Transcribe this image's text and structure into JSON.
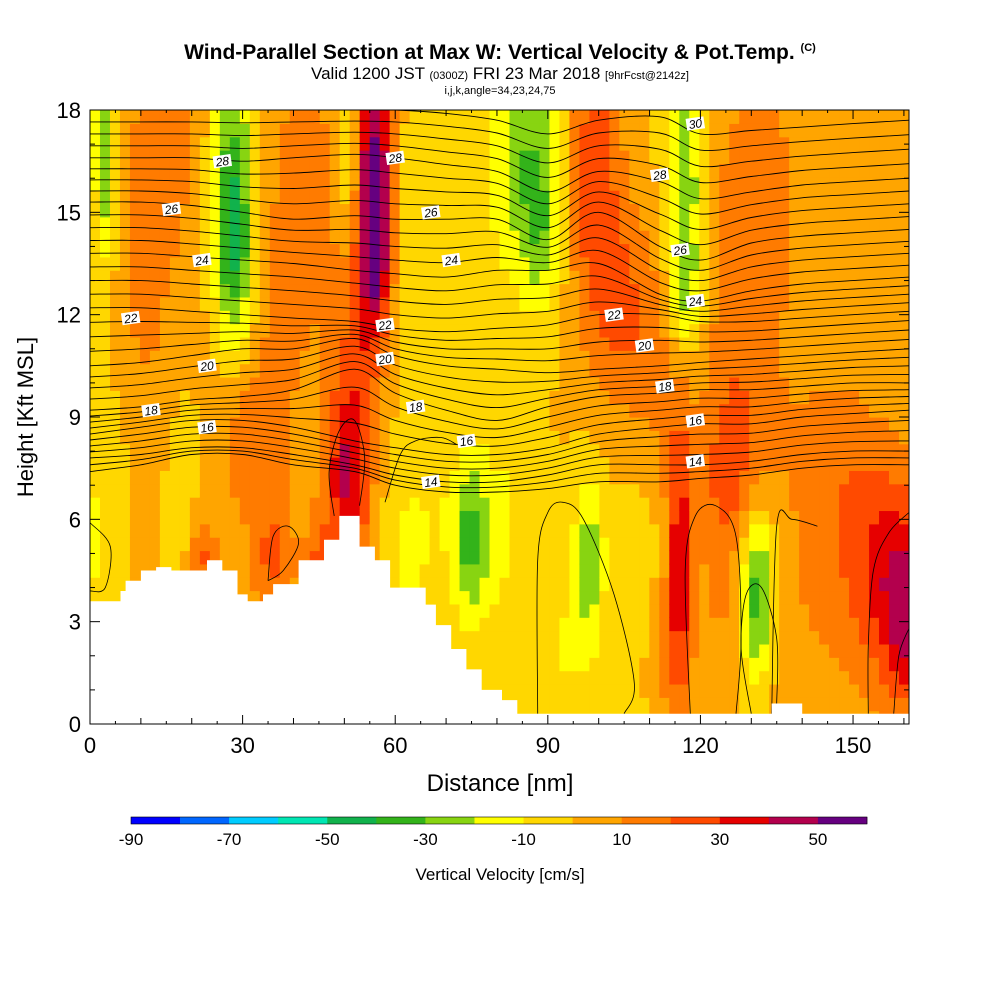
{
  "title": {
    "main": "Wind-Parallel Section at Max W: Vertical Velocity & Pot.Temp.",
    "copyright": "(C)",
    "valid_prefix": "Valid 1200 JST",
    "valid_utc": "(0300Z)",
    "valid_date": "FRI 23 Mar 2018",
    "forecast": "[9hrFcst@2142z]",
    "indices": "i,j,k,angle=34,23,24,75"
  },
  "colors": {
    "terrain": "#ffffff",
    "frame": "#000000",
    "contour": "#000000",
    "palette": [
      "#0000ff",
      "#0066ff",
      "#00ccff",
      "#00e6b3",
      "#11b24c",
      "#33b31a",
      "#88d411",
      "#ffff00",
      "#ffd700",
      "#ffa500",
      "#ff7b00",
      "#ff4a00",
      "#e60000",
      "#b3004d",
      "#660080"
    ]
  },
  "chart_data": {
    "type": "heatmap",
    "xlabel": "Distance [nm]",
    "ylabel": "Height [Kft MSL]",
    "xlim": [
      0,
      161
    ],
    "ylim": [
      0,
      18
    ],
    "x_ticks": [
      0,
      30,
      60,
      90,
      120,
      150
    ],
    "y_ticks": [
      0,
      3,
      6,
      9,
      12,
      15,
      18
    ],
    "colorbar": {
      "label": "Vertical Velocity [cm/s]",
      "tick_labels": [
        "-90",
        "-70",
        "-50",
        "-30",
        "-10",
        "10",
        "30",
        "50"
      ],
      "tick_values": [
        -90,
        -70,
        -50,
        -30,
        -10,
        10,
        30,
        50
      ],
      "min": -90,
      "max": 60,
      "step": 10
    },
    "terrain": {
      "x": [
        0,
        6,
        6,
        7,
        7,
        10,
        10,
        13,
        13,
        16,
        16,
        23,
        23,
        26,
        26,
        29,
        29,
        31,
        31,
        34,
        34,
        36,
        36,
        41,
        41,
        46,
        46,
        49,
        49,
        53,
        53,
        56,
        56,
        59,
        59,
        66,
        66,
        68,
        68,
        71,
        71,
        74,
        74,
        77,
        77,
        81,
        81,
        84,
        84,
        87,
        87,
        94,
        94,
        134,
        134,
        140,
        140,
        161
      ],
      "y": [
        3.6,
        3.6,
        3.9,
        3.9,
        4.2,
        4.2,
        4.5,
        4.5,
        4.6,
        4.6,
        4.5,
        4.5,
        4.8,
        4.8,
        4.5,
        4.5,
        3.8,
        3.8,
        3.6,
        3.6,
        3.8,
        3.8,
        4.1,
        4.1,
        4.8,
        4.8,
        5.4,
        5.4,
        6.1,
        6.1,
        5.2,
        5.2,
        4.8,
        4.8,
        4.0,
        4.0,
        3.5,
        3.5,
        2.9,
        2.9,
        2.2,
        2.2,
        1.6,
        1.6,
        1.0,
        1.0,
        0.7,
        0.7,
        0.3,
        0.3,
        0.3,
        0.3,
        0.3,
        0.3,
        0.6,
        0.6,
        0.3,
        0.3
      ]
    },
    "velocity_field": {
      "background": 0,
      "features": [
        {
          "x": 3,
          "y": 16.5,
          "sx": 1.6,
          "sy": 2.5,
          "value": -30
        },
        {
          "x": 28,
          "y": 16.0,
          "sx": 3,
          "sy": 3,
          "value": -32
        },
        {
          "x": 28.5,
          "y": 13.5,
          "sx": 2.5,
          "sy": 2,
          "value": -25
        },
        {
          "x": 15,
          "y": 17,
          "sx": 6,
          "sy": 2.5,
          "value": 12
        },
        {
          "x": 42,
          "y": 16,
          "sx": 6,
          "sy": 3,
          "value": 14
        },
        {
          "x": 51,
          "y": 17,
          "sx": 1.5,
          "sy": 2,
          "value": -22
        },
        {
          "x": 56,
          "y": 16.5,
          "sx": 2.6,
          "sy": 2.4,
          "value": 45
        },
        {
          "x": 56,
          "y": 13.5,
          "sx": 2.3,
          "sy": 2,
          "value": 35
        },
        {
          "x": 63,
          "y": 14,
          "sx": 2.5,
          "sy": 3,
          "value": -8
        },
        {
          "x": 86,
          "y": 16.5,
          "sx": 5,
          "sy": 2.5,
          "value": -30
        },
        {
          "x": 89,
          "y": 14.2,
          "sx": 2.5,
          "sy": 1.4,
          "value": -15
        },
        {
          "x": 99,
          "y": 16,
          "sx": 4,
          "sy": 3,
          "value": 28
        },
        {
          "x": 104,
          "y": 12,
          "sx": 4,
          "sy": 2,
          "value": 16
        },
        {
          "x": 117,
          "y": 15.5,
          "sx": 3,
          "sy": 3,
          "value": -32
        },
        {
          "x": 117,
          "y": 12.5,
          "sx": 2.5,
          "sy": 1.2,
          "value": -15
        },
        {
          "x": 112,
          "y": 11,
          "sx": 5,
          "sy": 3,
          "value": 14
        },
        {
          "x": 130,
          "y": 16,
          "sx": 8,
          "sy": 3,
          "value": 12
        },
        {
          "x": 128,
          "y": 10,
          "sx": 6,
          "sy": 3,
          "value": 14
        },
        {
          "x": 150,
          "y": 15,
          "sx": 12,
          "sy": 4,
          "value": 4
        },
        {
          "x": 10,
          "y": 11,
          "sx": 6,
          "sy": 4,
          "value": 12
        },
        {
          "x": 35,
          "y": 10,
          "sx": 8,
          "sy": 3,
          "value": 10
        },
        {
          "x": 52,
          "y": 9,
          "sx": 3,
          "sy": 3.5,
          "value": 20
        },
        {
          "x": 50,
          "y": 7,
          "sx": 3,
          "sy": 2,
          "value": 26
        },
        {
          "x": 18,
          "y": 7,
          "sx": 3,
          "sy": 2.5,
          "value": -10
        },
        {
          "x": 4,
          "y": 8,
          "sx": 5,
          "sy": 2.5,
          "value": -10
        },
        {
          "x": 31,
          "y": 8,
          "sx": 4,
          "sy": 1.5,
          "value": 12
        },
        {
          "x": 75,
          "y": 5.4,
          "sx": 2.6,
          "sy": 1.8,
          "value": -32
        },
        {
          "x": 82,
          "y": 6,
          "sx": 3,
          "sy": 3,
          "value": -10
        },
        {
          "x": 98,
          "y": 4.7,
          "sx": 2.2,
          "sy": 1.7,
          "value": -28
        },
        {
          "x": 92,
          "y": 2,
          "sx": 4,
          "sy": 2,
          "value": -10
        },
        {
          "x": 108,
          "y": 4,
          "sx": 3,
          "sy": 3,
          "value": -8
        },
        {
          "x": 116,
          "y": 4.5,
          "sx": 1.8,
          "sy": 3,
          "value": 36
        },
        {
          "x": 112,
          "y": 2,
          "sx": 3,
          "sy": 1.5,
          "value": 10
        },
        {
          "x": 131,
          "y": 3,
          "sx": 2.5,
          "sy": 1.4,
          "value": -28
        },
        {
          "x": 131,
          "y": 5,
          "sx": 2.5,
          "sy": 1.3,
          "value": -22
        },
        {
          "x": 124,
          "y": 4,
          "sx": 3,
          "sy": 3,
          "value": 10
        },
        {
          "x": 126,
          "y": 7.2,
          "sx": 4,
          "sy": 1.8,
          "value": 12
        },
        {
          "x": 155,
          "y": 4.7,
          "sx": 6,
          "sy": 2.5,
          "value": 30
        },
        {
          "x": 160,
          "y": 3,
          "sx": 3,
          "sy": 2,
          "value": 30
        },
        {
          "x": 140,
          "y": 3,
          "sx": 6,
          "sy": 3,
          "value": 8
        },
        {
          "x": 145,
          "y": 8,
          "sx": 6,
          "sy": 2,
          "value": 10
        },
        {
          "x": 1,
          "y": 5,
          "sx": 2,
          "sy": 1.5,
          "value": -10
        },
        {
          "x": 22,
          "y": 4.8,
          "sx": 2,
          "sy": 1,
          "value": 22
        },
        {
          "x": 36,
          "y": 4.8,
          "sx": 3,
          "sy": 1.2,
          "value": 20
        },
        {
          "x": 45,
          "y": 4.5,
          "sx": 2,
          "sy": 1,
          "value": 22
        },
        {
          "x": 62,
          "y": 4.8,
          "sx": 3,
          "sy": 1.5,
          "value": -10
        },
        {
          "x": 68,
          "y": 6,
          "sx": 5,
          "sy": 1.5,
          "value": -8
        }
      ]
    },
    "theta_contours": {
      "levels": [
        13,
        13.5,
        14,
        14.5,
        15,
        15.5,
        16,
        16.5,
        17,
        17.5,
        18,
        18.5,
        19,
        19.5,
        20,
        20.5,
        21,
        21.5,
        22,
        22.5,
        23,
        23.5,
        24,
        24.5,
        25,
        25.5,
        26,
        26.5,
        27,
        27.5,
        28,
        28.5,
        29,
        29.5,
        30
      ],
      "anchors_x": [
        0,
        10,
        20,
        30,
        40,
        52,
        60,
        70,
        80,
        90,
        100,
        112,
        120,
        130,
        140,
        150,
        161
      ],
      "anchors_level": [
        13,
        14,
        16,
        18,
        20,
        22,
        24,
        26,
        28,
        30
      ],
      "anchors_height": [
        [
          7.4,
          7.6,
          7.9,
          7.9,
          7.6,
          7.4,
          7.0,
          6.8,
          6.8,
          6.9,
          7.1,
          7.1,
          7.2,
          7.3,
          7.5,
          7.6,
          7.6
        ],
        [
          7.8,
          7.9,
          8.1,
          8.1,
          7.9,
          7.6,
          7.3,
          7.1,
          7.1,
          7.3,
          7.6,
          7.6,
          7.6,
          7.7,
          7.9,
          8.0,
          8.0
        ],
        [
          8.5,
          8.7,
          8.9,
          8.9,
          8.7,
          8.3,
          8.1,
          7.9,
          7.9,
          8.1,
          8.5,
          8.7,
          8.8,
          8.8,
          9.0,
          9.1,
          9.2
        ],
        [
          9.2,
          9.3,
          9.5,
          9.6,
          9.8,
          10.4,
          9.7,
          9.2,
          8.9,
          9.3,
          9.6,
          9.7,
          9.8,
          9.8,
          9.9,
          10.0,
          10.0
        ],
        [
          10.5,
          10.6,
          10.8,
          11.0,
          11.0,
          11.3,
          10.8,
          10.5,
          10.4,
          10.3,
          10.4,
          10.5,
          10.6,
          10.7,
          10.8,
          10.9,
          11.0
        ],
        [
          12.2,
          12.2,
          12.1,
          12.0,
          11.9,
          11.8,
          11.6,
          11.5,
          11.6,
          11.7,
          12.0,
          12.0,
          11.8,
          11.8,
          11.9,
          12.0,
          12.1
        ],
        [
          13.8,
          13.8,
          13.7,
          13.6,
          13.5,
          13.3,
          13.2,
          13.1,
          13.3,
          13.3,
          13.5,
          12.6,
          12.4,
          12.7,
          12.9,
          13.0,
          13.1
        ],
        [
          15.3,
          15.3,
          15.2,
          15.0,
          14.8,
          14.9,
          14.8,
          14.8,
          14.8,
          14.2,
          15.0,
          14.0,
          13.6,
          14.1,
          14.3,
          14.4,
          14.5
        ],
        [
          16.6,
          16.6,
          16.6,
          16.5,
          16.6,
          16.7,
          16.6,
          16.4,
          16.2,
          15.6,
          16.2,
          15.9,
          15.4,
          15.6,
          15.8,
          15.9,
          16.0
        ],
        [
          18.0,
          18.0,
          18.0,
          18.0,
          18.0,
          18.0,
          18.0,
          17.9,
          17.7,
          17.3,
          17.7,
          17.8,
          17.3,
          17.4,
          17.5,
          17.6,
          17.7
        ]
      ],
      "labels": [
        {
          "text": "28",
          "x": 26,
          "y": 16.5
        },
        {
          "text": "26",
          "x": 16,
          "y": 15.1
        },
        {
          "text": "24",
          "x": 22,
          "y": 13.6
        },
        {
          "text": "22",
          "x": 8,
          "y": 11.9
        },
        {
          "text": "20",
          "x": 23,
          "y": 10.5
        },
        {
          "text": "18",
          "x": 12,
          "y": 9.2
        },
        {
          "text": "16",
          "x": 23,
          "y": 8.7
        },
        {
          "text": "28",
          "x": 60,
          "y": 16.6
        },
        {
          "text": "26",
          "x": 67,
          "y": 15.0
        },
        {
          "text": "24",
          "x": 71,
          "y": 13.6
        },
        {
          "text": "22",
          "x": 58,
          "y": 11.7
        },
        {
          "text": "20",
          "x": 58,
          "y": 10.7
        },
        {
          "text": "18",
          "x": 64,
          "y": 9.3
        },
        {
          "text": "16",
          "x": 74,
          "y": 8.3
        },
        {
          "text": "14",
          "x": 67,
          "y": 7.1
        },
        {
          "text": "30",
          "x": 119,
          "y": 17.6
        },
        {
          "text": "28",
          "x": 112,
          "y": 16.1
        },
        {
          "text": "26",
          "x": 116,
          "y": 13.9
        },
        {
          "text": "24",
          "x": 119,
          "y": 12.4
        },
        {
          "text": "22",
          "x": 103,
          "y": 12.0
        },
        {
          "text": "20",
          "x": 109,
          "y": 11.1
        },
        {
          "text": "18",
          "x": 113,
          "y": 9.9
        },
        {
          "text": "16",
          "x": 119,
          "y": 8.9
        },
        {
          "text": "14",
          "x": 119,
          "y": 7.7
        }
      ]
    },
    "velocity_contours": [
      {
        "points": [
          [
            0,
            5.9
          ],
          [
            4,
            5.2
          ],
          [
            3,
            4.0
          ],
          [
            0,
            3.9
          ]
        ]
      },
      {
        "points": [
          [
            35,
            4.2
          ],
          [
            36,
            5.5
          ],
          [
            39,
            5.8
          ],
          [
            41,
            5.3
          ],
          [
            38,
            4.5
          ],
          [
            35,
            4.2
          ]
        ]
      },
      {
        "points": [
          [
            48,
            6.1
          ],
          [
            47,
            7.4
          ],
          [
            49,
            8.6
          ],
          [
            52,
            8.9
          ],
          [
            54,
            7.8
          ],
          [
            53,
            6.4
          ]
        ]
      },
      {
        "points": [
          [
            58,
            6.5
          ],
          [
            61,
            7.9
          ],
          [
            64,
            8.3
          ],
          [
            69,
            8.4
          ],
          [
            72,
            8.2
          ]
        ]
      },
      {
        "points": [
          [
            88,
            0.3
          ],
          [
            88,
            4.8
          ],
          [
            90,
            6.2
          ],
          [
            93,
            6.5
          ],
          [
            97,
            6.0
          ],
          [
            103,
            3.8
          ],
          [
            107,
            1.2
          ],
          [
            105,
            0.3
          ]
        ]
      },
      {
        "points": [
          [
            118,
            0.3
          ],
          [
            117,
            4.5
          ],
          [
            119,
            6.1
          ],
          [
            123,
            6.4
          ],
          [
            127,
            5.5
          ],
          [
            128,
            2.5
          ],
          [
            127,
            0.3
          ]
        ]
      },
      {
        "points": [
          [
            130,
            0.3
          ],
          [
            128,
            2.2
          ],
          [
            129,
            3.8
          ],
          [
            132,
            4.0
          ],
          [
            135,
            2.5
          ],
          [
            135,
            0.6
          ]
        ]
      },
      {
        "points": [
          [
            134,
            0.3
          ],
          [
            135,
            5.8
          ],
          [
            138,
            6.0
          ],
          [
            143,
            5.8
          ]
        ]
      },
      {
        "points": [
          [
            161,
            6.2
          ],
          [
            157,
            5.6
          ],
          [
            154,
            4.5
          ],
          [
            153,
            2.3
          ],
          [
            153,
            0.3
          ]
        ]
      },
      {
        "points": [
          [
            161,
            2.8
          ],
          [
            159,
            2.0
          ],
          [
            158,
            0.3
          ]
        ]
      }
    ]
  }
}
